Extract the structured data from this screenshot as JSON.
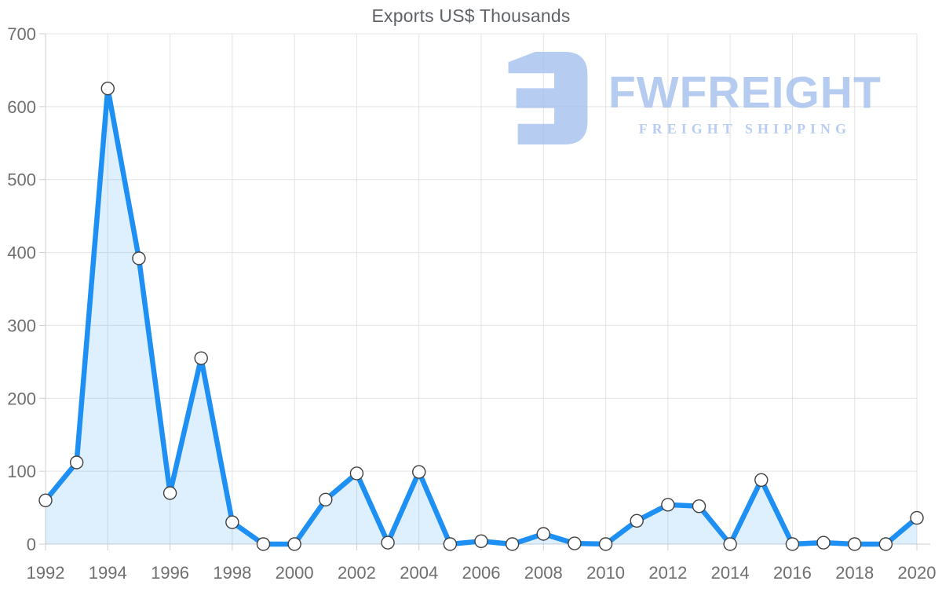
{
  "page": {
    "title": "Exports US$ Thousands"
  },
  "watermark": {
    "brand": "FWFREIGHT",
    "tagline": "FREIGHT SHIPPING",
    "color": "#a7c1ee"
  },
  "chart_data": {
    "type": "area",
    "title": "Exports US$ Thousands",
    "x": [
      1992,
      1993,
      1994,
      1995,
      1996,
      1997,
      1998,
      1999,
      2000,
      2001,
      2002,
      2003,
      2004,
      2005,
      2006,
      2007,
      2008,
      2009,
      2010,
      2011,
      2012,
      2013,
      2014,
      2015,
      2016,
      2017,
      2018,
      2019,
      2020
    ],
    "series": [
      {
        "name": "Exports US$ Thousands",
        "values": [
          60,
          112,
          625,
          392,
          70,
          255,
          30,
          0,
          0,
          61,
          97,
          2,
          99,
          0,
          4,
          0,
          14,
          1,
          0,
          32,
          54,
          52,
          0,
          88,
          0,
          2,
          0,
          0,
          36
        ]
      }
    ],
    "xlabel": "",
    "ylabel": "",
    "ylim": [
      0,
      700
    ],
    "ytick_step": 100,
    "xtick_step": 2,
    "grid": true,
    "legend": "none",
    "line_color": "#1e90f3",
    "fill_color_rgba": "rgba(33,150,243,0.15)",
    "marker_fill": "#ffffff",
    "marker_stroke": "#404040",
    "grid_color": "#e3e3e3",
    "axis_line_color": "#cfcfcf",
    "tick_label_color": "#6f6f6f"
  }
}
